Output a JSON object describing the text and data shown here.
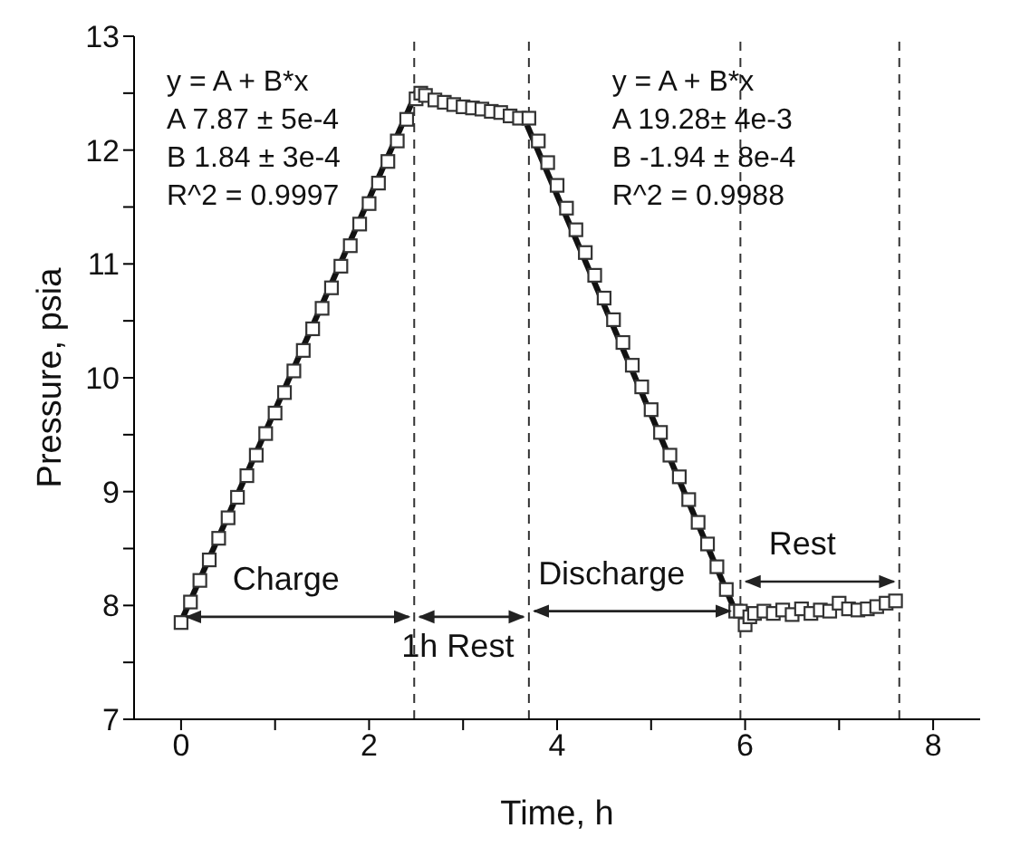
{
  "chart_data": {
    "type": "scatter",
    "xlabel": "Time, h",
    "ylabel": "Pressure, psia",
    "xlim": [
      -0.5,
      8.5
    ],
    "xticks": [
      0,
      {
        "value": 1,
        "label": null
      },
      2,
      {
        "value": 3,
        "label": null
      },
      4,
      {
        "value": 5,
        "label": null
      },
      6,
      {
        "value": 7,
        "label": null
      },
      8
    ],
    "ylim": [
      7,
      13
    ],
    "yticks": [
      7,
      {
        "value": 7.5,
        "label": null
      },
      8,
      {
        "value": 8.5,
        "label": null
      },
      9,
      {
        "value": 9.5,
        "label": null
      },
      10,
      {
        "value": 10.5,
        "label": null
      },
      11,
      {
        "value": 11.5,
        "label": null
      },
      12,
      {
        "value": 12.5,
        "label": null
      },
      13
    ],
    "series": [
      {
        "marker": "square",
        "color": "#333333",
        "x": [
          0,
          0.1,
          0.2,
          0.3,
          0.4,
          0.5,
          0.6,
          0.7,
          0.8,
          0.9,
          1.0,
          1.1,
          1.2,
          1.3,
          1.4,
          1.5,
          1.6,
          1.7,
          1.8,
          1.9,
          2.0,
          2.1,
          2.2,
          2.3,
          2.4,
          2.5,
          2.55,
          2.6,
          2.7,
          2.8,
          2.9,
          3.0,
          3.1,
          3.2,
          3.3,
          3.4,
          3.5,
          3.6,
          3.7,
          3.8,
          3.9,
          4.0,
          4.1,
          4.2,
          4.3,
          4.4,
          4.5,
          4.6,
          4.7,
          4.8,
          4.9,
          5.0,
          5.1,
          5.2,
          5.3,
          5.4,
          5.5,
          5.6,
          5.7,
          5.8,
          5.9,
          5.95,
          6.0,
          6.05,
          6.1,
          6.2,
          6.3,
          6.4,
          6.5,
          6.6,
          6.7,
          6.8,
          6.9,
          7.0,
          7.1,
          7.2,
          7.3,
          7.4,
          7.5,
          7.6
        ],
        "values": [
          7.85,
          8.03,
          8.22,
          8.4,
          8.59,
          8.77,
          8.95,
          9.14,
          9.32,
          9.51,
          9.69,
          9.87,
          10.06,
          10.24,
          10.43,
          10.61,
          10.79,
          10.98,
          11.16,
          11.35,
          11.53,
          11.71,
          11.9,
          12.08,
          12.27,
          12.45,
          12.5,
          12.48,
          12.44,
          12.42,
          12.4,
          12.38,
          12.37,
          12.36,
          12.34,
          12.33,
          12.3,
          12.28,
          12.28,
          12.08,
          11.89,
          11.69,
          11.49,
          11.3,
          11.1,
          10.9,
          10.7,
          10.51,
          10.31,
          10.11,
          9.92,
          9.72,
          9.52,
          9.32,
          9.13,
          8.93,
          8.73,
          8.54,
          8.34,
          8.14,
          7.95,
          7.95,
          7.83,
          7.9,
          7.93,
          7.95,
          7.93,
          7.96,
          7.92,
          7.97,
          7.93,
          7.96,
          7.95,
          8.02,
          7.97,
          7.96,
          7.97,
          7.99,
          8.02,
          8.04
        ]
      },
      {
        "type": "line",
        "color": "#111111",
        "x": [
          0,
          2.5
        ],
        "values": [
          7.86,
          12.5
        ]
      },
      {
        "type": "line",
        "color": "#111111",
        "x": [
          3.68,
          5.9
        ],
        "values": [
          12.22,
          7.94
        ]
      }
    ],
    "ref_lines": [
      {
        "axis": "x",
        "value": 2.48,
        "line_style": "dashed",
        "color": "#333333"
      },
      {
        "axis": "x",
        "value": 3.7,
        "line_style": "dashed",
        "color": "#333333"
      },
      {
        "axis": "x",
        "value": 5.95,
        "line_style": "dashed",
        "color": "#333333"
      },
      {
        "axis": "x",
        "value": 7.64,
        "line_style": "dashed",
        "color": "#333333"
      }
    ],
    "annotations": [
      "y = A + B*x\nA  7.87 ± 5e-4\nB  1.84 ± 3e-4\nR^2 =  0.9997",
      "y = A + B*x\nA 19.28± 4e-3\nB -1.94 ± 8e-4\nR^2 =  0.9988",
      "Charge",
      "1h Rest",
      {
        "text": "Discharge",
        "x": 5.9,
        "y": 7.95
      },
      {
        "text": "Rest",
        "x": 7.64,
        "y": 8.21
      }
    ]
  }
}
